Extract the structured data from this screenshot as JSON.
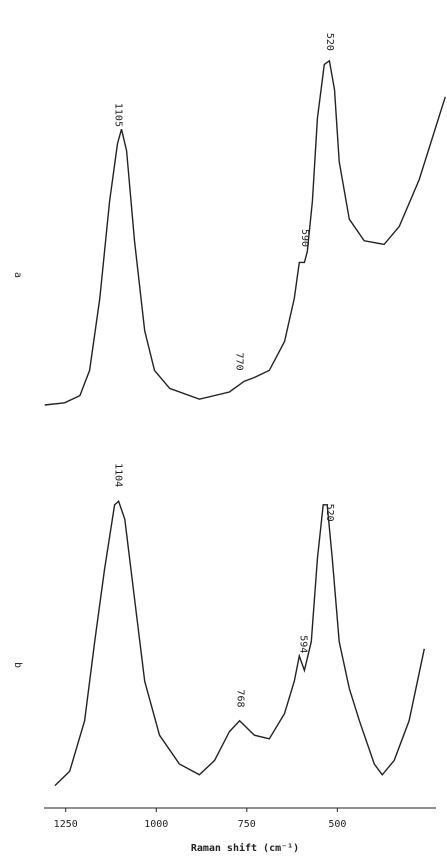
{
  "chart_data": [
    {
      "type": "line",
      "label": "a",
      "color": "#222",
      "x": [
        1308,
        1253,
        1211,
        1184,
        1156,
        1129,
        1107,
        1096,
        1082,
        1060,
        1032,
        1005,
        963,
        881,
        798,
        757,
        730,
        688,
        646,
        619,
        605,
        591,
        583,
        569,
        555,
        536,
        522,
        508,
        495,
        467,
        426,
        371,
        329,
        274,
        202
      ],
      "values": [
        1.4,
        2,
        4,
        11,
        31,
        58,
        74,
        78,
        72,
        47,
        22,
        11,
        6,
        3,
        5,
        8,
        9,
        11,
        19,
        31,
        41,
        41,
        44,
        58,
        81,
        96,
        97,
        89,
        69,
        53,
        47,
        46,
        51,
        64,
        87
      ],
      "peaks": [
        1105,
        770,
        590,
        520
      ],
      "xlim": [
        1310,
        200
      ],
      "ylim": [
        0,
        100
      ]
    },
    {
      "type": "line",
      "label": "b",
      "color": "#222",
      "x": [
        1280,
        1239,
        1198,
        1170,
        1143,
        1115,
        1104,
        1087,
        1060,
        1032,
        991,
        936,
        881,
        839,
        798,
        770,
        729,
        688,
        646,
        619,
        605,
        591,
        572,
        555,
        539,
        528,
        514,
        495,
        467,
        439,
        398,
        376,
        343,
        302,
        260
      ],
      "values": [
        4,
        8,
        22,
        44,
        64,
        82,
        83,
        78,
        56,
        33,
        18,
        10,
        7,
        11,
        19,
        22,
        18,
        17,
        24,
        33,
        40,
        36,
        44,
        67,
        82,
        82,
        67,
        44,
        31,
        22,
        10,
        7,
        11,
        22,
        42
      ],
      "peaks": [
        1104,
        768,
        594,
        520
      ],
      "xlim": [
        1310,
        200
      ],
      "ylim": [
        0,
        100
      ],
      "xticks": [
        1250,
        1000,
        750,
        500
      ],
      "xlabel": "Raman shift (cm⁻¹)"
    }
  ]
}
